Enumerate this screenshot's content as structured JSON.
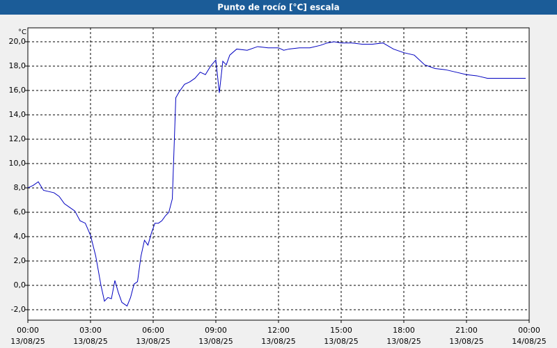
{
  "chart_data": {
    "type": "line",
    "title": "Punto de rocío [°C] escala",
    "y_unit": "°C",
    "x": [
      "13/08/25 00:00",
      "13/08/25 00:15",
      "13/08/25 00:30",
      "13/08/25 00:45",
      "13/08/25 01:00",
      "13/08/25 01:15",
      "13/08/25 01:30",
      "13/08/25 01:45",
      "13/08/25 02:00",
      "13/08/25 02:15",
      "13/08/25 02:30",
      "13/08/25 02:45",
      "13/08/25 03:00",
      "13/08/25 03:15",
      "13/08/25 03:30",
      "13/08/25 03:40",
      "13/08/25 03:50",
      "13/08/25 04:00",
      "13/08/25 04:10",
      "13/08/25 04:20",
      "13/08/25 04:30",
      "13/08/25 04:45",
      "13/08/25 04:55",
      "13/08/25 05:05",
      "13/08/25 05:15",
      "13/08/25 05:25",
      "13/08/25 05:35",
      "13/08/25 05:45",
      "13/08/25 05:55",
      "13/08/25 06:05",
      "13/08/25 06:15",
      "13/08/25 06:25",
      "13/08/25 06:35",
      "13/08/25 06:45",
      "13/08/25 06:55",
      "13/08/25 07:05",
      "13/08/25 07:15",
      "13/08/25 07:30",
      "13/08/25 07:45",
      "13/08/25 08:00",
      "13/08/25 08:15",
      "13/08/25 08:30",
      "13/08/25 08:45",
      "13/08/25 09:00",
      "13/08/25 09:10",
      "13/08/25 09:20",
      "13/08/25 09:30",
      "13/08/25 09:40",
      "13/08/25 10:00",
      "13/08/25 10:30",
      "13/08/25 11:00",
      "13/08/25 11:30",
      "13/08/25 12:00",
      "13/08/25 12:15",
      "13/08/25 12:30",
      "13/08/25 13:00",
      "13/08/25 13:30",
      "13/08/25 14:00",
      "13/08/25 14:20",
      "13/08/25 14:40",
      "13/08/25 15:00",
      "13/08/25 15:30",
      "13/08/25 16:00",
      "13/08/25 16:30",
      "13/08/25 17:00",
      "13/08/25 17:30",
      "13/08/25 18:00",
      "13/08/25 18:30",
      "13/08/25 19:00",
      "13/08/25 19:30",
      "13/08/25 20:00",
      "13/08/25 20:30",
      "13/08/25 21:00",
      "13/08/25 21:30",
      "13/08/25 22:00",
      "13/08/25 22:30",
      "13/08/25 23:00",
      "13/08/25 23:30",
      "13/08/25 23:50"
    ],
    "series": [
      {
        "color": "#0000c0",
        "values": [
          8.0,
          8.2,
          8.5,
          7.8,
          7.7,
          7.6,
          7.3,
          6.7,
          6.4,
          6.1,
          5.3,
          5.1,
          4.1,
          2.4,
          0.0,
          -1.3,
          -1.0,
          -1.1,
          0.4,
          -0.6,
          -1.4,
          -1.7,
          -1.0,
          0.1,
          0.3,
          2.4,
          3.7,
          3.3,
          4.3,
          5.1,
          5.1,
          5.3,
          5.7,
          6.0,
          7.1,
          15.4,
          15.9,
          16.5,
          16.7,
          17.0,
          17.5,
          17.3,
          18.0,
          18.5,
          15.8,
          18.4,
          18.1,
          18.9,
          19.4,
          19.3,
          19.6,
          19.5,
          19.5,
          19.3,
          19.4,
          19.5,
          19.5,
          19.7,
          19.9,
          20.0,
          19.9,
          19.9,
          19.8,
          19.8,
          19.9,
          19.4,
          19.1,
          18.9,
          18.1,
          17.8,
          17.7,
          17.5,
          17.3,
          17.2,
          17.0,
          17.0,
          17.0,
          17.0,
          17.0
        ]
      }
    ],
    "xlim": [
      "13/08/25 00:00",
      "14/08/25 00:00"
    ],
    "xticks": [
      {
        "value": "13/08/25 00:00",
        "label": [
          "00:00",
          "13/08/25"
        ]
      },
      {
        "value": "13/08/25 03:00",
        "label": [
          "03:00",
          "13/08/25"
        ]
      },
      {
        "value": "13/08/25 06:00",
        "label": [
          "06:00",
          "13/08/25"
        ]
      },
      {
        "value": "13/08/25 09:00",
        "label": [
          "09:00",
          "13/08/25"
        ]
      },
      {
        "value": "13/08/25 12:00",
        "label": [
          "12:00",
          "13/08/25"
        ]
      },
      {
        "value": "13/08/25 15:00",
        "label": [
          "15:00",
          "13/08/25"
        ]
      },
      {
        "value": "13/08/25 18:00",
        "label": [
          "18:00",
          "13/08/25"
        ]
      },
      {
        "value": "13/08/25 21:00",
        "label": [
          "21:00",
          "13/08/25"
        ]
      },
      {
        "value": "14/08/25 00:00",
        "label": [
          "00:00",
          "14/08/25"
        ]
      }
    ],
    "ylim": [
      -2.86,
      21.14
    ],
    "yticks": [
      {
        "value": -2,
        "label": "-2,0"
      },
      {
        "value": 0,
        "label": "0,0"
      },
      {
        "value": 2,
        "label": "2,0"
      },
      {
        "value": 4,
        "label": "4,0"
      },
      {
        "value": 6,
        "label": "6,0"
      },
      {
        "value": 8,
        "label": "8,0"
      },
      {
        "value": 10,
        "label": "10,0"
      },
      {
        "value": 12,
        "label": "12,0"
      },
      {
        "value": 14,
        "label": "14,0"
      },
      {
        "value": 16,
        "label": "16,0"
      },
      {
        "value": 18,
        "label": "18,0"
      },
      {
        "value": 20,
        "label": "20,0"
      }
    ],
    "grid": true
  }
}
